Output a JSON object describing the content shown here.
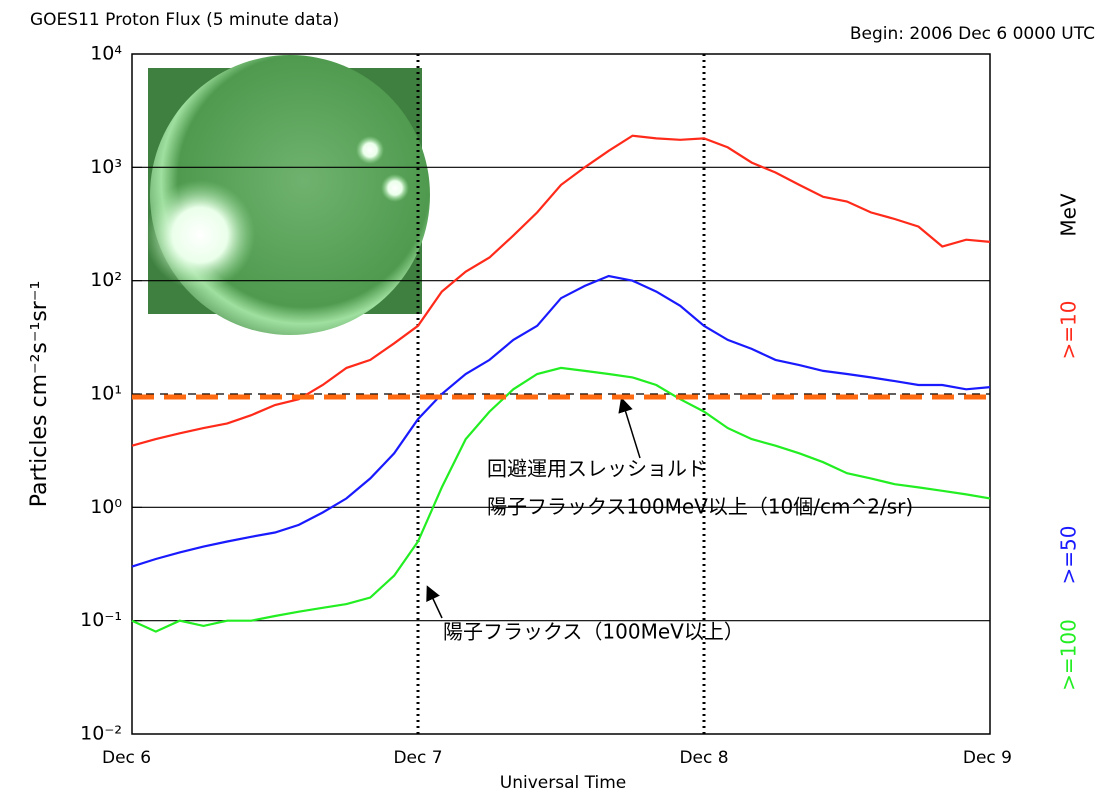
{
  "chart_data": {
    "type": "line",
    "title": "GOES11 Proton Flux (5 minute data)",
    "subtitle": "Begin: 2006 Dec 6 0000 UTC",
    "x_label": "Universal Time",
    "y_label": "Particles cm⁻²s⁻¹sr⁻¹",
    "legend_unit": "MeV",
    "yscale": "log",
    "xlim": [
      0,
      72
    ],
    "xticks": [
      {
        "value": 0,
        "label": "Dec 6"
      },
      {
        "value": 24,
        "label": "Dec 7"
      },
      {
        "value": 48,
        "label": "Dec 8"
      },
      {
        "value": 72,
        "label": "Dec 9"
      }
    ],
    "ylim": [
      0.01,
      10000
    ],
    "yticks": [
      {
        "value": 0.01,
        "label": "10⁻²"
      },
      {
        "value": 0.1,
        "label": "10⁻¹"
      },
      {
        "value": 1,
        "label": "10⁰"
      },
      {
        "value": 10,
        "label": "10¹"
      },
      {
        "value": 100,
        "label": "10²"
      },
      {
        "value": 1000,
        "label": "10³"
      },
      {
        "value": 10000,
        "label": "10⁴"
      }
    ],
    "grid": true,
    "x": [
      0,
      2,
      4,
      6,
      8,
      10,
      12,
      14,
      16,
      18,
      20,
      22,
      24,
      26,
      28,
      30,
      32,
      34,
      36,
      38,
      40,
      42,
      44,
      46,
      48,
      50,
      52,
      54,
      56,
      58,
      60,
      62,
      64,
      66,
      68,
      70,
      72
    ],
    "series": [
      {
        "name": ">=10",
        "color": "#ff2a1a",
        "values": [
          3.5,
          4,
          4.5,
          5,
          5.5,
          6.5,
          8,
          9,
          12,
          17,
          20,
          28,
          40,
          80,
          120,
          160,
          250,
          400,
          700,
          1000,
          1400,
          1900,
          1800,
          1750,
          1800,
          1500,
          1100,
          900,
          700,
          550,
          500,
          400,
          350,
          300,
          200,
          230,
          220
        ]
      },
      {
        "name": ">=50",
        "color": "#1a1aff",
        "values": [
          0.3,
          0.35,
          0.4,
          0.45,
          0.5,
          0.55,
          0.6,
          0.7,
          0.9,
          1.2,
          1.8,
          3,
          6,
          10,
          15,
          20,
          30,
          40,
          70,
          90,
          110,
          100,
          80,
          60,
          40,
          30,
          25,
          20,
          18,
          16,
          15,
          14,
          13,
          12,
          12,
          11,
          11.5
        ]
      },
      {
        "name": ">=100",
        "color": "#22ee22",
        "values": [
          0.1,
          0.08,
          0.1,
          0.09,
          0.1,
          0.1,
          0.11,
          0.12,
          0.13,
          0.14,
          0.16,
          0.25,
          0.5,
          1.5,
          4,
          7,
          11,
          15,
          17,
          16,
          15,
          14,
          12,
          9,
          7,
          5,
          4,
          3.5,
          3,
          2.5,
          2,
          1.8,
          1.6,
          1.5,
          1.4,
          1.3,
          1.2
        ]
      }
    ],
    "threshold": {
      "value": 10,
      "color": "#ff6a10"
    },
    "annotations": [
      "回避運用スレッショルド",
      "陽子フラックス100MeV以上（10個/cm^2/sr)",
      "陽子フラックス（100MeV以上）"
    ]
  }
}
